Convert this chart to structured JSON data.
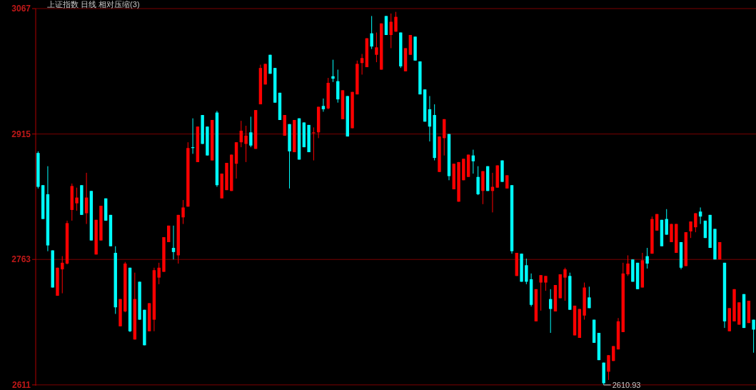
{
  "chart_data": {
    "type": "candlestick",
    "title": "上证指数 日线 相对压缩(3)",
    "categories": [
      null,
      null,
      null,
      null,
      null,
      null,
      null,
      null,
      null,
      null,
      null,
      null,
      null,
      null,
      null,
      null,
      null,
      null,
      null,
      null,
      null,
      null,
      null,
      null,
      null,
      null,
      null,
      null,
      null,
      null,
      null,
      null,
      null,
      null,
      null,
      null,
      null,
      null,
      null,
      null,
      null,
      null,
      null,
      null,
      null,
      null,
      null,
      null,
      null,
      null,
      null,
      null,
      null,
      null,
      null,
      null,
      null,
      null,
      null,
      null,
      null,
      null,
      null,
      null,
      null,
      null,
      null,
      null,
      null,
      null,
      null,
      null,
      null,
      null,
      null,
      null,
      null,
      null,
      null,
      null,
      null,
      null,
      null,
      null,
      null,
      null,
      null,
      null,
      null,
      null,
      null,
      null,
      null,
      null,
      null,
      null,
      null,
      null,
      null,
      null,
      null,
      null,
      null,
      null,
      null,
      null,
      null,
      null,
      null,
      null,
      null,
      null,
      null,
      null,
      null,
      null,
      null,
      null,
      null,
      null,
      null,
      null,
      null,
      null,
      null,
      null,
      null,
      null,
      null,
      null,
      null,
      null,
      null,
      null,
      null,
      null,
      null,
      null,
      null,
      null,
      null,
      null,
      null,
      null,
      null,
      null,
      null,
      null,
      null
    ],
    "ohlc": [
      [
        2892,
        2894,
        2849,
        2851
      ],
      [
        2853,
        2853,
        2812,
        2812
      ],
      [
        2842,
        2876,
        2773,
        2780
      ],
      [
        2774,
        2774,
        2729,
        2729
      ],
      [
        2719,
        2753,
        2719,
        2753
      ],
      [
        2751,
        2767,
        2722,
        2759
      ],
      [
        2758,
        2810,
        2757,
        2807
      ],
      [
        2823,
        2855,
        2810,
        2852
      ],
      [
        2831,
        2850,
        2822,
        2838
      ],
      [
        2853,
        2853,
        2817,
        2817
      ],
      [
        2819,
        2868,
        2806,
        2838
      ],
      [
        2846,
        2846,
        2786,
        2786
      ],
      [
        2769,
        2811,
        2769,
        2811
      ],
      [
        2786,
        2828,
        2786,
        2828
      ],
      [
        2837,
        2837,
        2810,
        2810
      ],
      [
        2817,
        2817,
        2779,
        2779
      ],
      [
        2771,
        2779,
        2697,
        2705
      ],
      [
        2682,
        2715,
        2682,
        2715
      ],
      [
        2700,
        2760,
        2699,
        2758
      ],
      [
        2753,
        2753,
        2675,
        2676
      ],
      [
        2666,
        2747,
        2666,
        2715
      ],
      [
        2736,
        2736,
        2690,
        2690
      ],
      [
        2702,
        2702,
        2659,
        2659
      ],
      [
        2676,
        2710,
        2676,
        2710
      ],
      [
        2690,
        2753,
        2676,
        2750
      ],
      [
        2741,
        2759,
        2733,
        2753
      ],
      [
        2748,
        2790,
        2748,
        2790
      ],
      [
        2784,
        2804,
        2784,
        2804
      ],
      [
        2777,
        2804,
        2763,
        2772
      ],
      [
        2768,
        2817,
        2758,
        2817
      ],
      [
        2814,
        2835,
        2806,
        2826
      ],
      [
        2827,
        2905,
        2827,
        2898
      ],
      [
        2899,
        2934,
        2891,
        2898
      ],
      [
        2881,
        2924,
        2881,
        2924
      ],
      [
        2938,
        2938,
        2903,
        2903
      ],
      [
        2924,
        2924,
        2889,
        2889
      ],
      [
        2883,
        2932,
        2883,
        2932
      ],
      [
        2941,
        2943,
        2851,
        2853
      ],
      [
        2837,
        2867,
        2837,
        2867
      ],
      [
        2847,
        2880,
        2847,
        2880
      ],
      [
        2846,
        2890,
        2846,
        2890
      ],
      [
        2879,
        2905,
        2861,
        2905
      ],
      [
        2905,
        2931,
        2899,
        2919
      ],
      [
        2903,
        2925,
        2881,
        2913
      ],
      [
        2917,
        2936,
        2899,
        2901
      ],
      [
        2897,
        2944,
        2897,
        2944
      ],
      [
        2951,
        2999,
        2951,
        2995
      ],
      [
        2975,
        3000,
        2975,
        3000
      ],
      [
        3011,
        3011,
        2988,
        2988
      ],
      [
        2995,
        2995,
        2953,
        2953
      ],
      [
        2965,
        2965,
        2932,
        2932
      ],
      [
        2913,
        2938,
        2913,
        2938
      ],
      [
        2927,
        2927,
        2849,
        2894
      ],
      [
        2893,
        2932,
        2893,
        2932
      ],
      [
        2934,
        2934,
        2884,
        2884
      ],
      [
        2929,
        2929,
        2899,
        2899
      ],
      [
        2926,
        2926,
        2893,
        2893
      ],
      [
        2916,
        2923,
        2883,
        2917
      ],
      [
        2917,
        2948,
        2910,
        2948
      ],
      [
        2949,
        2958,
        2942,
        2945
      ],
      [
        2946,
        2983,
        2945,
        2977
      ],
      [
        2985,
        3005,
        2978,
        2982
      ],
      [
        2979,
        2993,
        2953,
        2957
      ],
      [
        2933,
        2968,
        2933,
        2968
      ],
      [
        2961,
        2961,
        2912,
        2912
      ],
      [
        2922,
        2966,
        2922,
        2966
      ],
      [
        2963,
        3004,
        2963,
        3000
      ],
      [
        3001,
        3012,
        2987,
        3007
      ],
      [
        2996,
        3031,
        2996,
        3031
      ],
      [
        3037,
        3058,
        3018,
        3021
      ],
      [
        3011,
        3038,
        3002,
        3020
      ],
      [
        2993,
        3049,
        2993,
        3049
      ],
      [
        3058,
        3058,
        3035,
        3035
      ],
      [
        3035,
        3061,
        3019,
        3051
      ],
      [
        3039,
        3063,
        3039,
        3057
      ],
      [
        3038,
        3038,
        2995,
        2997
      ],
      [
        2991,
        3019,
        2991,
        3019
      ],
      [
        3011,
        3035,
        3011,
        3035
      ],
      [
        3033,
        3033,
        3004,
        3004
      ],
      [
        3003,
        3003,
        2963,
        2963
      ],
      [
        2969,
        2969,
        2930,
        2930
      ],
      [
        2945,
        2961,
        2906,
        2924
      ],
      [
        2938,
        2951,
        2883,
        2886
      ],
      [
        2869,
        2912,
        2869,
        2912
      ],
      [
        2910,
        2933,
        2889,
        2933
      ],
      [
        2915,
        2915,
        2859,
        2864
      ],
      [
        2848,
        2879,
        2848,
        2879
      ],
      [
        2833,
        2881,
        2833,
        2881
      ],
      [
        2859,
        2885,
        2859,
        2885
      ],
      [
        2863,
        2890,
        2863,
        2890
      ],
      [
        2889,
        2896,
        2867,
        2882
      ],
      [
        2863,
        2876,
        2841,
        2842
      ],
      [
        2846,
        2870,
        2830,
        2870
      ],
      [
        2876,
        2876,
        2846,
        2846
      ],
      [
        2846,
        2868,
        2820,
        2851
      ],
      [
        2850,
        2877,
        2850,
        2877
      ],
      [
        2883,
        2883,
        2857,
        2857
      ],
      [
        2849,
        2865,
        2849,
        2865
      ],
      [
        2853,
        2853,
        2770,
        2773
      ],
      [
        2743,
        2771,
        2743,
        2771
      ],
      [
        2770,
        2770,
        2736,
        2736
      ],
      [
        2756,
        2764,
        2733,
        2736
      ],
      [
        2739,
        2746,
        2706,
        2708
      ],
      [
        2688,
        2727,
        2688,
        2727
      ],
      [
        2735,
        2744,
        2701,
        2744
      ],
      [
        2735,
        2743,
        2725,
        2743
      ],
      [
        2715,
        2727,
        2674,
        2703
      ],
      [
        2700,
        2732,
        2700,
        2732
      ],
      [
        2716,
        2745,
        2716,
        2745
      ],
      [
        2741,
        2753,
        2713,
        2751
      ],
      [
        2743,
        2747,
        2702,
        2702
      ],
      [
        2671,
        2707,
        2671,
        2707
      ],
      [
        2668,
        2703,
        2668,
        2703
      ],
      [
        2695,
        2735,
        2690,
        2729
      ],
      [
        2717,
        2730,
        2704,
        2704
      ],
      [
        2690,
        2690,
        2662,
        2662
      ],
      [
        2674,
        2674,
        2641,
        2641
      ],
      [
        2638,
        2638,
        2610.93,
        2613
      ],
      [
        2627,
        2647,
        2617,
        2647
      ],
      [
        2640,
        2658,
        2640,
        2658
      ],
      [
        2654,
        2692,
        2654,
        2688
      ],
      [
        2675,
        2759,
        2675,
        2746
      ],
      [
        2745,
        2768,
        2743,
        2758
      ],
      [
        2763,
        2763,
        2736,
        2736
      ],
      [
        2759,
        2759,
        2727,
        2727
      ],
      [
        2729,
        2771,
        2729,
        2762
      ],
      [
        2767,
        2777,
        2752,
        2758
      ],
      [
        2770,
        2815,
        2770,
        2812
      ],
      [
        2798,
        2818,
        2798,
        2818
      ],
      [
        2811,
        2811,
        2779,
        2779
      ],
      [
        2812,
        2824,
        2793,
        2793
      ],
      [
        2784,
        2806,
        2784,
        2806
      ],
      [
        2771,
        2806,
        2771,
        2806
      ],
      [
        2784,
        2784,
        2751,
        2753
      ],
      [
        2755,
        2796,
        2755,
        2796
      ],
      [
        2797,
        2809,
        2789,
        2809
      ],
      [
        2802,
        2819,
        2796,
        2819
      ],
      [
        2821,
        2826,
        2806,
        2815
      ],
      [
        2810,
        2810,
        2789,
        2789
      ],
      [
        2817,
        2817,
        2777,
        2777
      ],
      [
        2800,
        2800,
        2763,
        2763
      ],
      [
        2763,
        2784,
        2763,
        2784
      ],
      [
        2759,
        2759,
        2680,
        2688
      ],
      [
        2676,
        2704,
        2676,
        2704
      ],
      [
        2688,
        2727,
        2688,
        2727
      ],
      [
        2684,
        2711,
        2684,
        2711
      ],
      [
        2721,
        2721,
        2680,
        2680
      ],
      [
        2686,
        2713,
        2686,
        2713
      ],
      [
        2690,
        2690,
        2650,
        2678
      ]
    ],
    "colors": [
      "#00ffff",
      "#00ffff",
      "#00ffff",
      "#00ffff",
      "#ff0000",
      "#ff0000",
      "#ff0000",
      "#ff0000",
      "#ff0000",
      "#00ffff",
      "#ff0000",
      "#00ffff",
      "#ff0000",
      "#ff0000",
      "#00ffff",
      "#00ffff",
      "#00ffff",
      "#ff0000",
      "#ff0000",
      "#00ffff",
      "#ff0000",
      "#00ffff",
      "#00ffff",
      "#ff0000",
      "#ff0000",
      "#ff0000",
      "#ff0000",
      "#ff0000",
      "#00ffff",
      "#ff0000",
      "#ff0000",
      "#ff0000",
      "#00ffff",
      "#ff0000",
      "#00ffff",
      "#00ffff",
      "#ff0000",
      "#00ffff",
      "#ff0000",
      "#ff0000",
      "#ff0000",
      "#ff0000",
      "#ff0000",
      "#ff0000",
      "#00ffff",
      "#ff0000",
      "#ff0000",
      "#ff0000",
      "#00ffff",
      "#00ffff",
      "#00ffff",
      "#ff0000",
      "#00ffff",
      "#ff0000",
      "#00ffff",
      "#00ffff",
      "#00ffff",
      "#ff0000",
      "#ff0000",
      "#00ffff",
      "#ff0000",
      "#00ffff",
      "#00ffff",
      "#ff0000",
      "#00ffff",
      "#ff0000",
      "#ff0000",
      "#ff0000",
      "#ff0000",
      "#00ffff",
      "#ff0000",
      "#ff0000",
      "#00ffff",
      "#ff0000",
      "#ff0000",
      "#00ffff",
      "#ff0000",
      "#ff0000",
      "#00ffff",
      "#00ffff",
      "#00ffff",
      "#00ffff",
      "#00ffff",
      "#ff0000",
      "#ff0000",
      "#00ffff",
      "#ff0000",
      "#ff0000",
      "#ff0000",
      "#ff0000",
      "#00ffff",
      "#00ffff",
      "#ff0000",
      "#00ffff",
      "#ff0000",
      "#ff0000",
      "#00ffff",
      "#ff0000",
      "#00ffff",
      "#ff0000",
      "#00ffff",
      "#00ffff",
      "#00ffff",
      "#ff0000",
      "#ff0000",
      "#ff0000",
      "#00ffff",
      "#ff0000",
      "#ff0000",
      "#ff0000",
      "#00ffff",
      "#ff0000",
      "#ff0000",
      "#ff0000",
      "#00ffff",
      "#00ffff",
      "#00ffff",
      "#00ffff",
      "#ff0000",
      "#ff0000",
      "#ff0000",
      "#ff0000",
      "#ff0000",
      "#00ffff",
      "#00ffff",
      "#ff0000",
      "#00ffff",
      "#ff0000",
      "#ff0000",
      "#00ffff",
      "#00ffff",
      "#ff0000",
      "#ff0000",
      "#00ffff",
      "#ff0000",
      "#ff0000",
      "#ff0000",
      "#00ffff",
      "#00ffff",
      "#00ffff",
      "#00ffff",
      "#ff0000",
      "#00ffff",
      "#ff0000",
      "#ff0000",
      "#ff0000",
      "#00ffff",
      "#ff0000",
      "#00ffff"
    ],
    "ylim": [
      2610,
      3067
    ],
    "yticks": [
      2611,
      2763,
      2915,
      3067
    ],
    "grid": "y",
    "annotations": [
      "2610.93"
    ]
  }
}
